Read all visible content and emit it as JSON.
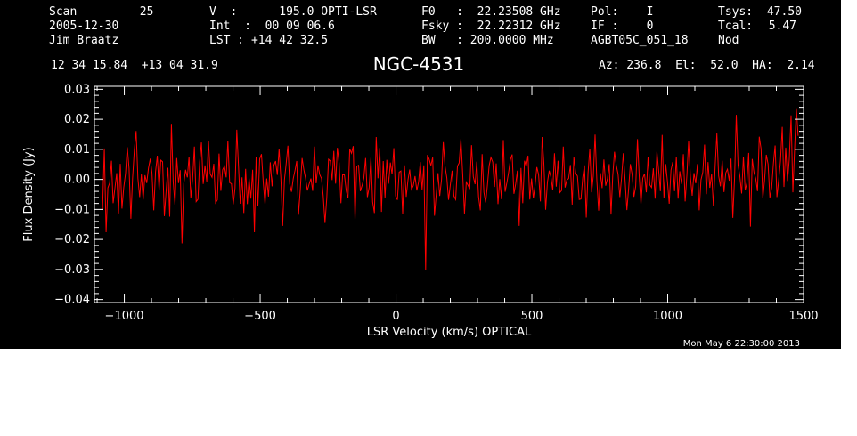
{
  "header": {
    "col1": [
      "Scan         25",
      "2005-12-30",
      "Jim Braatz"
    ],
    "col2": [
      "V  :      195.0 OPTI-LSR",
      "Int  :  00 09 06.6",
      "LST : +14 42 32.5"
    ],
    "col3": [
      "F0   :  22.23508 GHz",
      "Fsky :  22.22312 GHz",
      "BW   : 200.0000 MHz"
    ],
    "col4": [
      "Pol:    I",
      "IF :    0",
      "AGBT05C_051_18"
    ],
    "col5": [
      "Tsys:",
      "Tcal:",
      "Nod"
    ],
    "col6": [
      "47.50",
      "5.47",
      ""
    ],
    "coords": "12 34 15.84  +13 04 31.9",
    "source": "NGC-4531",
    "az_el_ha": "Az: 236.8  El:  52.0  HA:  2.14",
    "timestamp": "Mon May  6 22:30:00 2013"
  },
  "chart_data": {
    "type": "line",
    "title": "NGC-4531",
    "xlabel": "LSR Velocity (km/s) OPTICAL",
    "ylabel": "Flux Density (Jy)",
    "xlim": [
      -1110,
      1500
    ],
    "ylim": [
      -0.041,
      0.031
    ],
    "x_ticks": [
      -1000,
      -500,
      0,
      500,
      1000,
      1500
    ],
    "x_tick_labels": [
      "−1000",
      "−500",
      "0",
      "500",
      "1000",
      "1500"
    ],
    "y_ticks": [
      0.03,
      0.02,
      0.01,
      0.0,
      -0.01,
      -0.02,
      -0.03,
      -0.04
    ],
    "y_tick_labels": [
      "0.03",
      "0.02",
      "0.01",
      "0.00",
      "−0.01",
      "−0.02",
      "−0.03",
      "−0.04"
    ],
    "grid": false,
    "series": [
      {
        "color": "#ff0000",
        "x_start": -1080,
        "x_end": 1480,
        "values": [
          -0.0102,
          0.0103,
          -0.0176,
          -0.0028,
          -0.0012,
          0.0062,
          -0.0079,
          -0.0029,
          0.0021,
          -0.0113,
          0.0052,
          -0.0097,
          -0.0027,
          0.0019,
          0.0107,
          0.0036,
          -0.0131,
          0.0003,
          0.0098,
          0.0161,
          0.0004,
          -0.0059,
          0.0017,
          -0.0067,
          0.0014,
          -0.0012,
          0.0038,
          0.0069,
          0.0021,
          -0.0103,
          0.0026,
          0.0079,
          -0.0037,
          0.0064,
          0.0059,
          -0.0122,
          -0.0037,
          0.0039,
          -0.0124,
          0.0185,
          -0.0006,
          -0.0084,
          0.0071,
          -0.0012,
          0.0031,
          -0.0213,
          -0.0014,
          0.0032,
          0.0007,
          0.0076,
          -0.0062,
          0.0001,
          0.0109,
          -0.0074,
          -0.0066,
          0.0057,
          0.0123,
          -0.0015,
          0.0047,
          -0.0007,
          0.0129,
          0.0018,
          0.0007,
          0.0052,
          -0.0078,
          -0.0068,
          0.0086,
          -0.0038,
          0.0032,
          0.0044,
          0.0007,
          0.0129,
          -0.0011,
          -0.0014,
          -0.0083,
          -0.0029,
          0.0165,
          0.0045,
          -0.0081,
          0.0007,
          -0.0112,
          0.0035,
          -0.0082,
          0.0003,
          -0.0064,
          0.0032,
          -0.0176,
          0.0076,
          -0.0089,
          0.0068,
          0.0084,
          -0.0009,
          -0.0082,
          0.0003,
          -0.0057,
          0.0057,
          -0.0023,
          0.0047,
          0.0061,
          0.0015,
          0.0101,
          0.0003,
          -0.0155,
          -0.0001,
          0.0051,
          0.0112,
          -0.0015,
          -0.0041,
          0.0003,
          0.0029,
          0.0061,
          -0.0118,
          -0.0033,
          0.0071,
          0.0032,
          0.0004,
          -0.0037,
          -0.0016,
          0.0003,
          -0.0038,
          0.0109,
          -0.0013,
          0.0047,
          0.0016,
          0.0003,
          -0.0054,
          -0.0145,
          -0.0062,
          0.0067,
          0.0061,
          -0.0002,
          0.0095,
          -0.0014,
          0.0105,
          0.0054,
          -0.0079,
          0.0016,
          0.0015,
          -0.0037,
          -0.0063,
          0.0101,
          0.0087,
          0.0111,
          -0.0134,
          0.0043,
          0.0047,
          -0.0039,
          -0.0021,
          0.0004,
          0.0071,
          -0.0059,
          -0.0027,
          0.0072,
          -0.0075,
          -0.0112,
          0.0141,
          0.0004,
          0.0105,
          -0.0108,
          0.0061,
          -0.0061,
          0.0065,
          -0.0014,
          0.0056,
          0.0017,
          0.0104,
          -0.0055,
          -0.0068,
          0.0024,
          0.0028,
          -0.0115,
          0.0047,
          -0.0058,
          -0.0001,
          0.0033,
          -0.0033,
          -0.0021,
          0.0011,
          -0.0037,
          -0.0008,
          0.0058,
          -0.0034,
          0.0047,
          -0.0302,
          0.0081,
          0.0068,
          0.0046,
          0.0073,
          -0.0121,
          -0.0049,
          0.0021,
          -0.0055,
          -0.0001,
          0.0124,
          0.0043,
          0.0005,
          -0.0068,
          -0.0018,
          0.0029,
          -0.0055,
          -0.0067,
          0.0044,
          0.0055,
          0.0134,
          0.0017,
          -0.0114,
          -0.0009,
          -0.0019,
          -0.0032,
          0.0114,
          0.0009,
          -0.0016,
          0.0059,
          -0.0057,
          -0.0103,
          0.0084,
          -0.0043,
          -0.0077,
          -0.0021,
          0.0046,
          0.0073,
          0.0058,
          -0.0025,
          0.0053,
          -0.0082,
          0.0001,
          -0.0066,
          0.0131,
          -0.0041,
          -0.0012,
          0.0023,
          0.0065,
          0.0083,
          -0.0048,
          -0.0016,
          0.0029,
          -0.0155,
          0.0038,
          -0.0079,
          0.0062,
          0.0043,
          0.0079,
          -0.0067,
          0.0003,
          -0.0063,
          -0.0021,
          0.0041,
          0.0016,
          -0.0073,
          0.0141,
          0.0054,
          -0.0101,
          -0.0009,
          0.0029,
          0.0007,
          -0.0036,
          0.0087,
          -0.0024,
          0.0062,
          -0.0044,
          -0.0037,
          0.0109,
          -0.0027,
          -0.0002,
          0.0003,
          0.0048,
          -0.0084,
          0.0074,
          0.0021,
          0.0011,
          -0.0067,
          -0.0065,
          0.0005,
          0.0047,
          -0.0127,
          0.0022,
          0.0101,
          -0.0043,
          0.0011,
          0.0149,
          -0.0004,
          -0.0104,
          0.0021,
          -0.0029,
          0.0066,
          -0.0021,
          0.0003,
          0.0051,
          -0.0117,
          0.0011,
          0.0092,
          0.0047,
          0.0018,
          -0.0059,
          0.0005,
          0.0087,
          -0.0004,
          -0.0102,
          -0.0029,
          0.0051,
          0.0016,
          -0.0058,
          -0.0023,
          0.0134,
          0.0007,
          -0.0082,
          0.0004,
          0.0019,
          -0.0043,
          0.0075,
          -0.0018,
          -0.0027,
          0.0037,
          -0.0064,
          0.0092,
          0.0029,
          -0.0039,
          0.0148,
          -0.0063,
          0.0051,
          -0.0009,
          -0.0081,
          0.0031,
          0.0058,
          -0.0039,
          0.0076,
          -0.0064,
          0.0027,
          -0.0015,
          0.0084,
          -0.0073,
          0.0016,
          0.0127,
          0.0008,
          -0.0054,
          0.0021,
          -0.0013,
          0.0051,
          -0.0103,
          -0.0001,
          0.0024,
          0.0116,
          -0.0049,
          0.0058,
          -0.0028,
          0.0019,
          -0.0088,
          0.0045,
          0.0153,
          0.0012,
          -0.0023,
          0.0062,
          -0.0042,
          0.0022,
          0.0034,
          -0.0004,
          0.0069,
          -0.0128,
          0.0007,
          0.0215,
          0.0048,
          0.0011,
          -0.0047,
          0.0076,
          -0.0036,
          -0.0012,
          0.0088,
          -0.0157,
          0.0068,
          0.0023,
          0.0003,
          -0.0039,
          0.0142,
          0.0102,
          -0.0063,
          -0.0004,
          0.0082,
          0.0051,
          -0.0061,
          -0.0028,
          0.0054,
          0.0113,
          -0.0059,
          -0.0003,
          0.0061,
          0.0175,
          -0.0025,
          0.0106,
          -0.0005,
          0.0067,
          0.0213,
          -0.0043,
          0.0097,
          0.0237,
          0.0145
        ]
      }
    ]
  }
}
